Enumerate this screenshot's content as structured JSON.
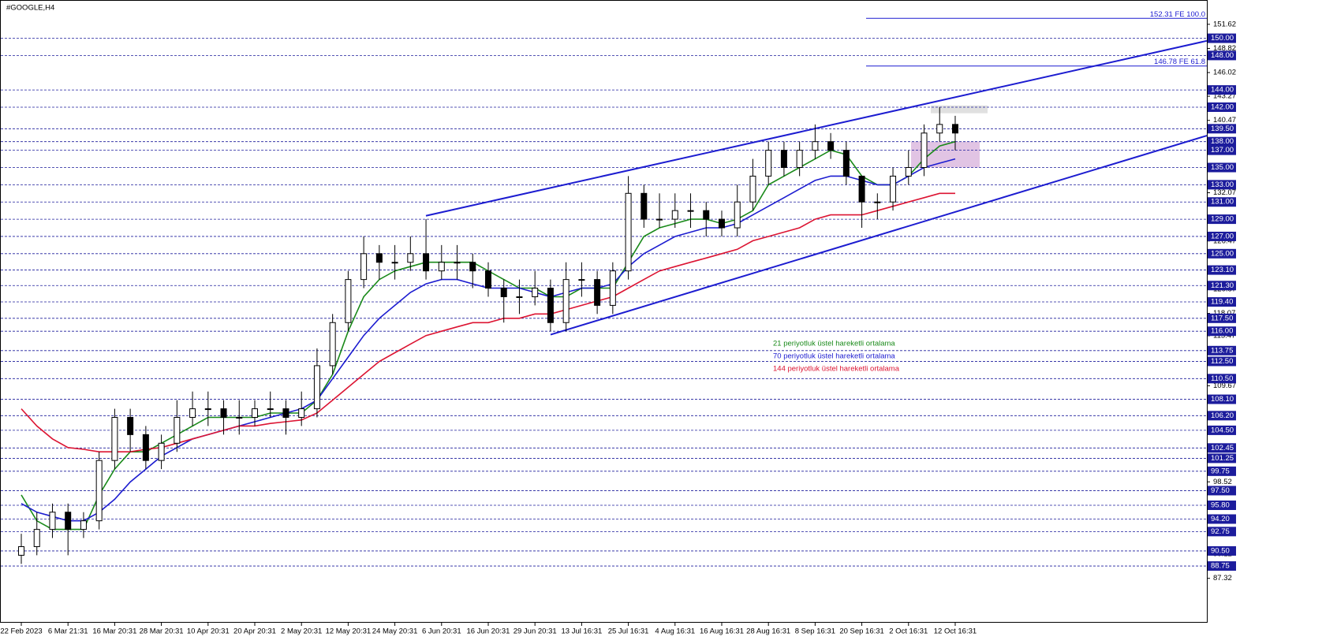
{
  "chart_data": {
    "type": "candlestick",
    "title": "#GOOGLE,H4",
    "categories": [
      "22 Feb 2023",
      null,
      null,
      "6 Mar 21:31",
      null,
      null,
      "16 Mar 20:31",
      null,
      null,
      "28 Mar 20:31",
      null,
      null,
      "10 Apr 20:31",
      null,
      null,
      "20 Apr 20:31",
      null,
      null,
      "2 May 20:31",
      null,
      null,
      "12 May 20:31",
      null,
      null,
      "24 May 20:31",
      null,
      null,
      "6 Jun 20:31",
      null,
      null,
      "16 Jun 20:31",
      null,
      null,
      "29 Jun 20:31",
      null,
      null,
      "13 Jul 16:31",
      null,
      null,
      "25 Jul 16:31",
      null,
      null,
      "4 Aug 16:31",
      null,
      null,
      "16 Aug 16:31",
      null,
      null,
      "28 Aug 16:31",
      null,
      null,
      "8 Sep 16:31",
      null,
      null,
      "20 Sep 16:31",
      null,
      null,
      "2 Oct 16:31",
      null,
      null,
      "12 Oct 16:31"
    ],
    "open": [
      90,
      91,
      93,
      95,
      93,
      94,
      101,
      106,
      104,
      101,
      103,
      106,
      107,
      107,
      106,
      106,
      107,
      107,
      106,
      107,
      112,
      117,
      122,
      125,
      124,
      124,
      125,
      123,
      124,
      124,
      123,
      121,
      120,
      120,
      121,
      117,
      122,
      122,
      119,
      123,
      132,
      129,
      129,
      130,
      130,
      129,
      128,
      131,
      134,
      137,
      135,
      137,
      138,
      137,
      134,
      131,
      131,
      134,
      135,
      139,
      140
    ],
    "high": [
      92.5,
      95,
      96,
      96,
      95,
      102,
      107,
      107,
      105,
      104,
      108,
      109,
      109,
      108,
      108,
      108,
      109,
      108,
      109,
      114,
      118,
      123,
      127,
      126,
      126,
      127,
      129,
      126,
      126,
      125,
      124,
      122,
      122,
      123,
      122,
      124,
      124,
      123,
      124,
      134,
      133,
      132,
      132,
      132,
      131,
      130,
      133,
      136,
      138,
      138,
      138,
      140,
      139,
      138,
      134,
      132,
      135,
      137,
      140,
      142,
      141
    ],
    "low": [
      89,
      90,
      92,
      90,
      92,
      93,
      100,
      102,
      100,
      100,
      102,
      105,
      105,
      104,
      104,
      105,
      106,
      104,
      105,
      106,
      111,
      116,
      121,
      122,
      122,
      123,
      122,
      122,
      122,
      121,
      120,
      117,
      118,
      119,
      116,
      116,
      120,
      118,
      118,
      122,
      128,
      128,
      128,
      128,
      127,
      127,
      127,
      130,
      133,
      134,
      134,
      136,
      136,
      133,
      128,
      129,
      130,
      133,
      134,
      138,
      137
    ],
    "close": [
      91,
      93,
      95,
      93,
      94,
      101,
      106,
      104,
      101,
      103,
      106,
      107,
      107,
      106,
      106,
      107,
      107,
      106,
      107,
      112,
      117,
      122,
      125,
      124,
      124,
      125,
      123,
      124,
      124,
      123,
      121,
      120,
      120,
      121,
      117,
      122,
      122,
      119,
      123,
      132,
      129,
      129,
      130,
      130,
      129,
      128,
      131,
      134,
      137,
      135,
      137,
      138,
      137,
      134,
      131,
      131,
      134,
      135,
      139,
      140,
      139
    ],
    "candle_color": "#000000",
    "series": [
      {
        "name": "21 periyotluk üstel hareketli ortalama",
        "color": "#1a8a1a",
        "values": [
          97,
          94,
          93,
          93,
          93,
          97,
          100,
          102,
          102,
          103,
          104,
          105,
          106,
          106,
          106,
          106,
          106.5,
          106.5,
          106.5,
          108,
          111,
          116,
          120,
          122,
          123,
          123.5,
          124,
          124,
          124,
          124,
          123,
          122,
          121,
          121,
          120,
          120,
          121,
          121,
          121,
          124,
          127,
          128,
          128.5,
          129,
          129,
          128.5,
          129,
          130,
          133,
          134,
          135,
          136,
          137,
          136.5,
          134,
          133,
          133,
          134,
          136,
          137.5,
          138
        ]
      },
      {
        "name": "70 periyotluk üstel hareketli ortalama",
        "color": "#1c1cd0",
        "values": [
          96,
          95,
          94.5,
          94,
          94,
          95,
          96.5,
          98.5,
          100,
          101.5,
          102.5,
          103.5,
          104,
          104.5,
          105,
          105.5,
          106,
          106.5,
          107,
          108,
          110.5,
          113,
          115.5,
          117.5,
          119,
          120.5,
          121.5,
          122,
          122,
          121.5,
          121,
          121,
          121,
          120.5,
          120,
          120.5,
          121,
          121,
          121.5,
          123.5,
          125,
          126,
          127,
          127.5,
          128,
          128,
          128.5,
          129.5,
          130.5,
          131.5,
          132.5,
          133.5,
          134,
          134,
          133.5,
          133,
          133,
          134,
          135,
          135.5,
          136
        ]
      },
      {
        "name": "144 periyotluk üstel hareketli ortalama",
        "color": "#dc1432",
        "values": [
          107,
          105,
          103.5,
          102.5,
          102.3,
          102,
          102,
          102,
          102.3,
          102.5,
          103,
          103.5,
          104,
          104.5,
          105,
          105,
          105.3,
          105.5,
          105.7,
          106.5,
          108,
          109.5,
          111,
          112.5,
          113.5,
          114.5,
          115.5,
          116,
          116.5,
          117,
          117,
          117.5,
          117.5,
          118,
          118,
          118.5,
          119,
          119.5,
          120,
          121,
          122,
          123,
          123.5,
          124,
          124.5,
          125,
          125.5,
          126.5,
          127,
          127.5,
          128,
          129,
          129.5,
          129.5,
          129.5,
          130,
          130.5,
          131,
          131.5,
          132,
          132
        ]
      }
    ],
    "trendlines": [
      {
        "color": "#1c1cd0",
        "values": [
          129.4,
          149.7
        ]
      },
      {
        "color": "#1c1cd0",
        "values": [
          115.6,
          138.7
        ]
      }
    ],
    "zones": [
      {
        "color": "#d8d8d8",
        "values": [
          142.2,
          141.3
        ]
      },
      {
        "color": "#d9b5dd",
        "values": [
          138,
          135
        ]
      }
    ],
    "fib_levels": [
      {
        "value": 152.31,
        "label": "152.31 FE 100.0"
      },
      {
        "value": 146.78,
        "label": "146.78 FE 61.8"
      }
    ],
    "levels": [
      {
        "value": 150,
        "label": "150.00"
      },
      {
        "value": 148,
        "label": "148.00"
      },
      {
        "value": 144,
        "label": "144.00"
      },
      {
        "value": 142,
        "label": "142.00"
      },
      {
        "value": 139.5,
        "label": "139.50"
      },
      {
        "value": 138,
        "label": "138.00"
      },
      {
        "value": 137,
        "label": "137.00"
      },
      {
        "value": 135,
        "label": "135.00"
      },
      {
        "value": 133,
        "label": "133.00"
      },
      {
        "value": 131,
        "label": "131.00"
      },
      {
        "value": 129,
        "label": "129.00"
      },
      {
        "value": 127,
        "label": "127.00"
      },
      {
        "value": 125,
        "label": "125.00"
      },
      {
        "value": 123.1,
        "label": "123.10"
      },
      {
        "value": 121.3,
        "label": "121.30"
      },
      {
        "value": 119.4,
        "label": "119.40"
      },
      {
        "value": 117.5,
        "label": "117.50"
      },
      {
        "value": 116,
        "label": "116.00"
      },
      113.75,
      {
        "value": 112.5,
        "label": "112.50"
      },
      {
        "value": 110.5,
        "label": "110.50"
      },
      {
        "value": 108.1,
        "label": "108.10"
      },
      {
        "value": 106.2,
        "label": "106.20"
      },
      {
        "value": 104.5,
        "label": "104.50"
      },
      102.45,
      101.25,
      99.75,
      {
        "value": 97.5,
        "label": "97.50"
      },
      {
        "value": 95.8,
        "label": "95.80"
      },
      {
        "value": 94.2,
        "label": "94.20"
      },
      92.75,
      {
        "value": 90.5,
        "label": "90.50"
      },
      88.75
    ],
    "ylim": [
      82.17,
      154.44
    ],
    "yticks": [
      151.62,
      148.82,
      146.02,
      143.27,
      140.47,
      132.07,
      126.47,
      120.87,
      118.07,
      115.47,
      109.67,
      98.52,
      90.12,
      87.32
    ]
  }
}
